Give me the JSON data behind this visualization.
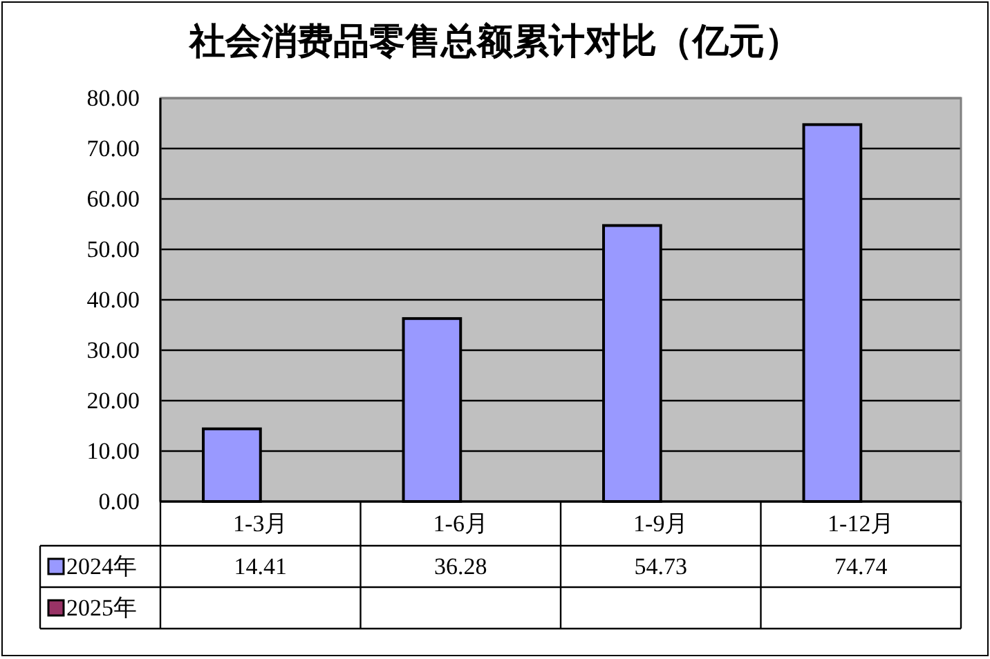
{
  "chart_data": {
    "type": "bar",
    "title": "社会消费品零售总额累计对比（亿元）",
    "categories": [
      "1-3月",
      "1-6月",
      "1-9月",
      "1-12月"
    ],
    "series": [
      {
        "name": "2024年",
        "color": "#9999ff",
        "values": [
          14.41,
          36.28,
          54.73,
          74.74
        ]
      },
      {
        "name": "2025年",
        "color": "#993366",
        "values": [
          null,
          null,
          null,
          null
        ]
      }
    ],
    "ylim": [
      0,
      80
    ],
    "yticks": [
      {
        "value": 0,
        "label": "0.00"
      },
      {
        "value": 10,
        "label": "10.00"
      },
      {
        "value": 20,
        "label": "20.00"
      },
      {
        "value": 30,
        "label": "30.00"
      },
      {
        "value": 40,
        "label": "40.00"
      },
      {
        "value": 50,
        "label": "50.00"
      },
      {
        "value": 60,
        "label": "60.00"
      },
      {
        "value": 70,
        "label": "70.00"
      },
      {
        "value": 80,
        "label": "80.00"
      }
    ],
    "grid": "y",
    "data_labels": true,
    "legend": "bottom"
  }
}
